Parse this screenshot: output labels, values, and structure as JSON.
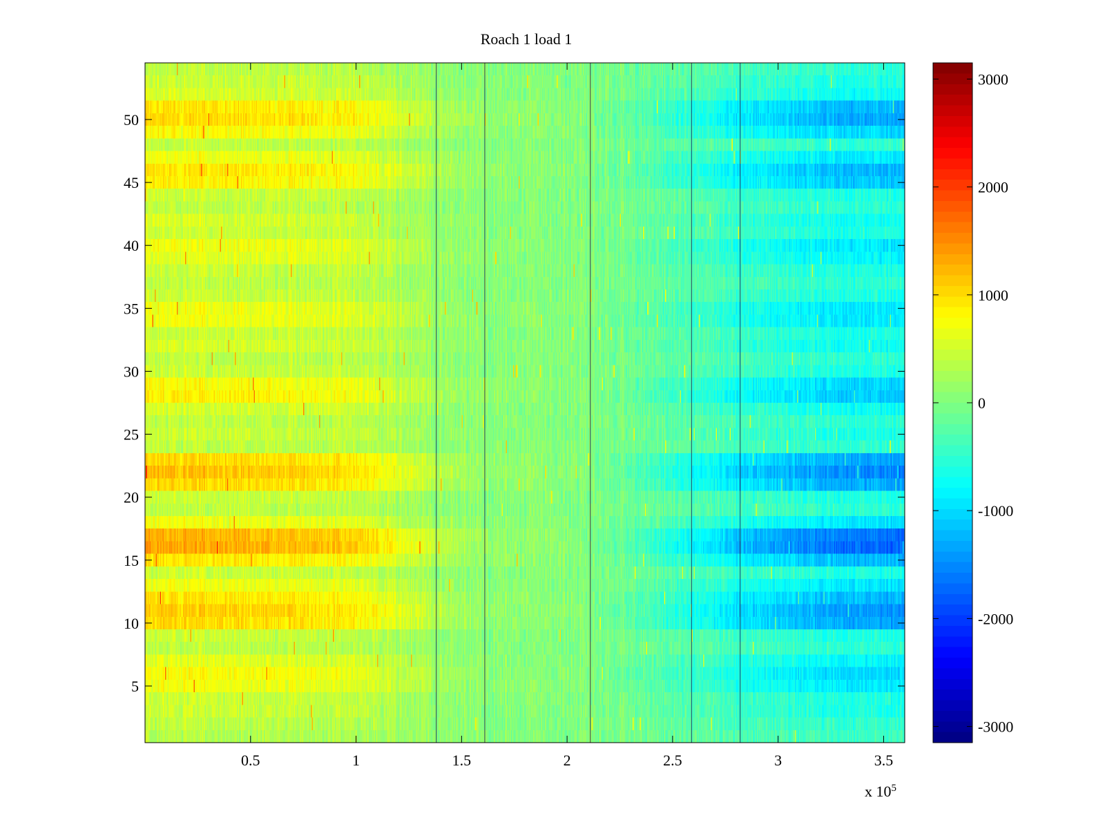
{
  "chart_data": {
    "type": "heatmap",
    "title": "Roach 1 load 1",
    "xlabel": "",
    "ylabel": "",
    "x_exponent_label": "x 10",
    "x_exponent_power": "5",
    "xlim": [
      0,
      3.6
    ],
    "ylim": [
      0.5,
      54.5
    ],
    "xticks": [
      0.5,
      1,
      1.5,
      2,
      2.5,
      3,
      3.5
    ],
    "xtick_labels": [
      "0.5",
      "1",
      "1.5",
      "2",
      "2.5",
      "3",
      "3.5"
    ],
    "yticks": [
      5,
      10,
      15,
      20,
      25,
      30,
      35,
      40,
      45,
      50
    ],
    "ytick_labels": [
      "5",
      "10",
      "15",
      "20",
      "25",
      "30",
      "35",
      "40",
      "45",
      "50"
    ],
    "rows": 54,
    "colormap": "jet",
    "clim": [
      -3150,
      3150
    ],
    "colorbar_ticks": [
      3000,
      2000,
      1000,
      0,
      -1000,
      -2000,
      -3000
    ],
    "colorbar_tick_labels": [
      "3000",
      "2000",
      "1000",
      "0",
      "-1000",
      "-2000",
      "-3000"
    ],
    "x_profile": {
      "description": "approximate mean value across columns (x in units of 10^5)",
      "x": [
        0,
        0.5,
        1.0,
        1.4,
        1.6,
        2.0,
        2.3,
        2.6,
        2.9,
        3.2,
        3.6
      ],
      "values": [
        800,
        750,
        650,
        250,
        100,
        50,
        -150,
        -500,
        -750,
        -950,
        -1050
      ]
    },
    "row_amplitude": [
      0.4,
      0.5,
      0.6,
      0.6,
      0.9,
      1.0,
      0.8,
      0.5,
      0.6,
      1.3,
      1.4,
      1.2,
      0.9,
      0.6,
      1.2,
      1.7,
      1.6,
      0.9,
      0.5,
      0.6,
      1.3,
      1.5,
      1.3,
      0.5,
      0.6,
      0.5,
      0.7,
      1.1,
      1.0,
      0.6,
      0.5,
      0.7,
      0.6,
      0.9,
      0.9,
      0.6,
      0.5,
      0.6,
      0.8,
      0.9,
      0.6,
      0.7,
      0.5,
      0.6,
      1.1,
      1.2,
      0.9,
      0.5,
      1.0,
      1.3,
      1.2,
      0.7,
      0.6,
      0.5
    ],
    "dark_vertical_lines_x": [
      1.38,
      1.61,
      2.11,
      2.59,
      2.82
    ]
  }
}
